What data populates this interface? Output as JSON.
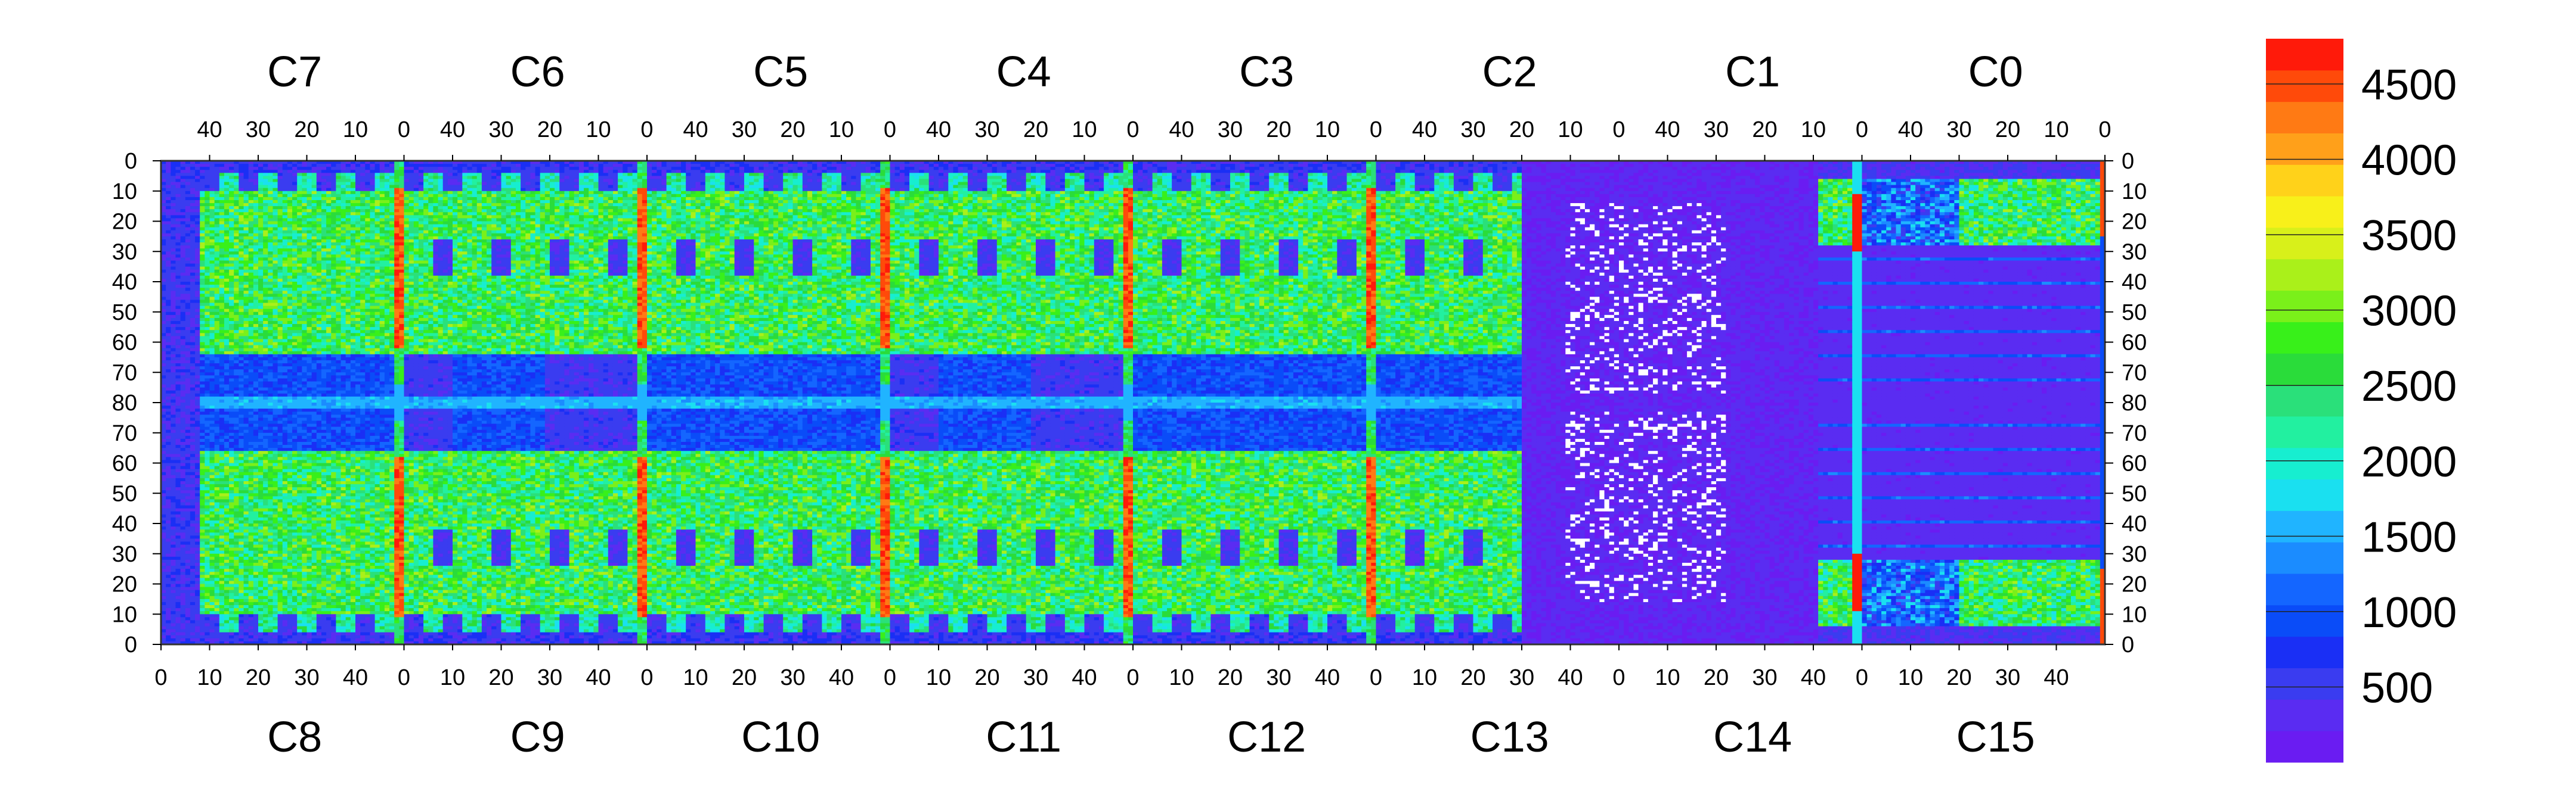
{
  "chart_data": {
    "type": "heatmap",
    "title": "",
    "xlabel": "",
    "ylabel": "",
    "grid": false,
    "top_chips": [
      "C7",
      "C6",
      "C5",
      "C4",
      "C3",
      "C2",
      "C1",
      "C0"
    ],
    "bottom_chips": [
      "C8",
      "C9",
      "C10",
      "C11",
      "C12",
      "C13",
      "C14",
      "C15"
    ],
    "top_column_ticks": [
      "40",
      "30",
      "20",
      "10",
      "0"
    ],
    "bottom_column_ticks": [
      "0",
      "10",
      "20",
      "30",
      "40"
    ],
    "left_row_ticks": [
      "0",
      "10",
      "20",
      "30",
      "40",
      "50",
      "60",
      "70",
      "80",
      "70",
      "60",
      "50",
      "40",
      "30",
      "20",
      "10",
      "0"
    ],
    "right_row_ticks": [
      "0",
      "10",
      "20",
      "30",
      "40",
      "50",
      "60",
      "70",
      "80",
      "70",
      "60",
      "50",
      "40",
      "30",
      "20",
      "10",
      "0"
    ],
    "colorbar": {
      "range": [
        0,
        4800
      ],
      "ticks": [
        "500",
        "1000",
        "1500",
        "2000",
        "2500",
        "3000",
        "3500",
        "4000",
        "4500"
      ],
      "colors": [
        "#6a1cf2",
        "#5a2cf2",
        "#3a3cf0",
        "#1a2ff5",
        "#0a4cf8",
        "#1466ff",
        "#1b8cff",
        "#20b4ff",
        "#1ae0f0",
        "#17eed0",
        "#22f0a0",
        "#2ae07a",
        "#2adc3a",
        "#38f01a",
        "#7af01a",
        "#aaf01a",
        "#d8f01a",
        "#f8f01a",
        "#ffd21a",
        "#ffa01a",
        "#ff7a14",
        "#ff4a0a",
        "#ff1a0a"
      ],
      "location": "right"
    },
    "dominant_values": {
      "hot_columns": ">4000",
      "upper_active_band": "2000-3000",
      "middle_band": "500-1000",
      "C13_C14_C15_region": "<500",
      "dead_pixels": "white (no data)"
    }
  }
}
